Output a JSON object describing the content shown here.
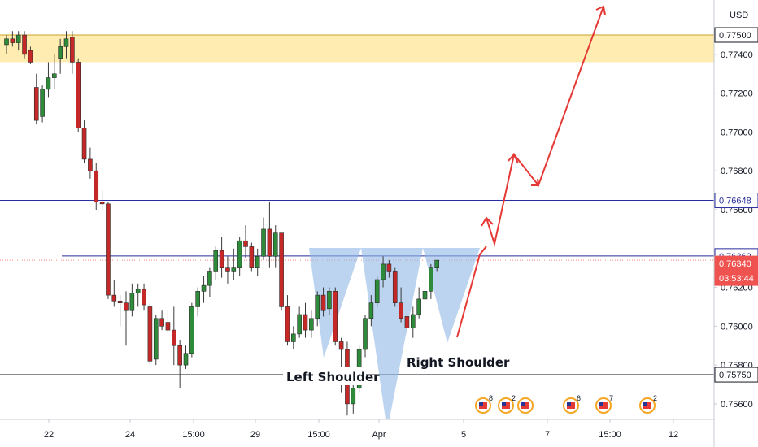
{
  "chart_data": {
    "type": "candlestick",
    "currency_label": "USD",
    "y_range": [
      0.7552,
      0.7768
    ],
    "price_ticks": [
      "0.77400",
      "0.77200",
      "0.77000",
      "0.76800",
      "0.76600",
      "0.76200",
      "0.76000",
      "0.75800",
      "0.75600"
    ],
    "x_ticks": [
      "22",
      "24",
      "15:00",
      "29",
      "15:00",
      "Apr",
      "5",
      "7",
      "15:00",
      "12"
    ],
    "price_tags": [
      {
        "value": "0.77500",
        "bg": "#ffffff",
        "fg": "#131722",
        "border": "#131722"
      },
      {
        "value": "0.76648",
        "bg": "#ffffff",
        "fg": "#2a2e9e",
        "border": "#2a2e9e"
      },
      {
        "value": "0.76362",
        "bg": "#ffffff",
        "fg": "#2a2e9e",
        "border": "#2a2e9e"
      },
      {
        "value": "0.76340",
        "bg": "#ef5350",
        "fg": "#ffffff",
        "border": "#ef5350"
      },
      {
        "value": "03:53:44",
        "bg": "#ef5350",
        "fg": "#ffffff",
        "border": "#ef5350"
      },
      {
        "value": "0.75750",
        "bg": "#ffffff",
        "fg": "#131722",
        "border": "#131722"
      }
    ],
    "horizontal_levels": [
      {
        "price": 0.76648,
        "color": "#2a2e9e"
      },
      {
        "price": 0.76362,
        "color": "#2a2e9e"
      },
      {
        "price": 0.7575,
        "color": "#131722"
      }
    ],
    "resistance_zone": [
      0.7736,
      0.775
    ],
    "annotations": [
      {
        "text": "Left Shoulder"
      },
      {
        "text": "Right Shoulder"
      }
    ],
    "event_markers": [
      {
        "count": "8"
      },
      {
        "count": "2"
      },
      {
        "count": ""
      },
      {
        "count": "6"
      },
      {
        "count": "7"
      },
      {
        "count": "2"
      }
    ],
    "candles": [
      [
        0.7745,
        0.775,
        0.774,
        0.7748
      ],
      [
        0.7748,
        0.7752,
        0.7744,
        0.7746
      ],
      [
        0.7746,
        0.7752,
        0.7742,
        0.775
      ],
      [
        0.775,
        0.7752,
        0.7738,
        0.774
      ],
      [
        0.7742,
        0.7744,
        0.7735,
        0.7736
      ],
      [
        0.7723,
        0.773,
        0.7704,
        0.7706
      ],
      [
        0.7708,
        0.7724,
        0.7705,
        0.7722
      ],
      [
        0.7722,
        0.7736,
        0.7718,
        0.7728
      ],
      [
        0.7728,
        0.774,
        0.7722,
        0.773
      ],
      [
        0.7738,
        0.7748,
        0.773,
        0.7744
      ],
      [
        0.7744,
        0.7752,
        0.7738,
        0.7748
      ],
      [
        0.7749,
        0.7752,
        0.773,
        0.7736
      ],
      [
        0.7736,
        0.7738,
        0.77,
        0.7702
      ],
      [
        0.7702,
        0.7706,
        0.7684,
        0.7686
      ],
      [
        0.7686,
        0.7692,
        0.7676,
        0.768
      ],
      [
        0.768,
        0.7684,
        0.766,
        0.7664
      ],
      [
        0.7664,
        0.767,
        0.766,
        0.7663
      ],
      [
        0.7663,
        0.7664,
        0.7614,
        0.7616
      ],
      [
        0.7616,
        0.7624,
        0.761,
        0.7613
      ],
      [
        0.7613,
        0.7616,
        0.76,
        0.7612
      ],
      [
        0.7612,
        0.7618,
        0.759,
        0.7608
      ],
      [
        0.7608,
        0.7622,
        0.7605,
        0.7617
      ],
      [
        0.7617,
        0.7622,
        0.761,
        0.7619
      ],
      [
        0.7619,
        0.7622,
        0.7608,
        0.7611
      ],
      [
        0.761,
        0.7612,
        0.758,
        0.7582
      ],
      [
        0.7583,
        0.7606,
        0.758,
        0.7604
      ],
      [
        0.7604,
        0.7608,
        0.7598,
        0.76
      ],
      [
        0.7602,
        0.7608,
        0.7596,
        0.7598
      ],
      [
        0.7598,
        0.761,
        0.758,
        0.759
      ],
      [
        0.759,
        0.7593,
        0.7568,
        0.758
      ],
      [
        0.758,
        0.759,
        0.7578,
        0.7586
      ],
      [
        0.7586,
        0.7612,
        0.7584,
        0.761
      ],
      [
        0.761,
        0.762,
        0.7605,
        0.7618
      ],
      [
        0.7618,
        0.7626,
        0.7612,
        0.7621
      ],
      [
        0.7621,
        0.763,
        0.7615,
        0.7628
      ],
      [
        0.7628,
        0.7641,
        0.7624,
        0.7639
      ],
      [
        0.7639,
        0.7646,
        0.7625,
        0.763
      ],
      [
        0.763,
        0.7636,
        0.7622,
        0.7628
      ],
      [
        0.7628,
        0.764,
        0.7624,
        0.763
      ],
      [
        0.763,
        0.7646,
        0.7626,
        0.7644
      ],
      [
        0.7644,
        0.7652,
        0.7635,
        0.7641
      ],
      [
        0.7641,
        0.7643,
        0.7628,
        0.763
      ],
      [
        0.763,
        0.764,
        0.7626,
        0.7636
      ],
      [
        0.7636,
        0.7656,
        0.7634,
        0.765
      ],
      [
        0.765,
        0.7664,
        0.763,
        0.7636
      ],
      [
        0.7636,
        0.7652,
        0.763,
        0.7648
      ],
      [
        0.7648,
        0.7648,
        0.7608,
        0.761
      ],
      [
        0.761,
        0.7616,
        0.759,
        0.7592
      ],
      [
        0.7592,
        0.76,
        0.7588,
        0.7596
      ],
      [
        0.7596,
        0.761,
        0.7594,
        0.7606
      ],
      [
        0.7606,
        0.7612,
        0.7594,
        0.7598
      ],
      [
        0.7598,
        0.7608,
        0.7594,
        0.7604
      ],
      [
        0.7604,
        0.7618,
        0.76,
        0.7616
      ],
      [
        0.7616,
        0.762,
        0.7605,
        0.7608
      ],
      [
        0.7609,
        0.762,
        0.7606,
        0.7618
      ],
      [
        0.7618,
        0.762,
        0.759,
        0.7592
      ],
      [
        0.7592,
        0.7594,
        0.7566,
        0.7588
      ],
      [
        0.7588,
        0.7592,
        0.7554,
        0.756
      ],
      [
        0.756,
        0.7576,
        0.7555,
        0.7568
      ],
      [
        0.7568,
        0.759,
        0.7566,
        0.7588
      ],
      [
        0.7588,
        0.7606,
        0.7584,
        0.7604
      ],
      [
        0.7604,
        0.7616,
        0.76,
        0.7612
      ],
      [
        0.7612,
        0.7626,
        0.761,
        0.7624
      ],
      [
        0.7624,
        0.7636,
        0.762,
        0.7632
      ],
      [
        0.7632,
        0.7634,
        0.7625,
        0.7628
      ],
      [
        0.7628,
        0.763,
        0.761,
        0.7612
      ],
      [
        0.7612,
        0.762,
        0.7602,
        0.7604
      ],
      [
        0.7605,
        0.7608,
        0.7596,
        0.7599
      ],
      [
        0.7599,
        0.761,
        0.7594,
        0.7606
      ],
      [
        0.7606,
        0.762,
        0.7604,
        0.7614
      ],
      [
        0.7614,
        0.762,
        0.7608,
        0.7618
      ],
      [
        0.7618,
        0.7632,
        0.7614,
        0.763
      ],
      [
        0.763,
        0.7634,
        0.7628,
        0.7634
      ]
    ]
  }
}
